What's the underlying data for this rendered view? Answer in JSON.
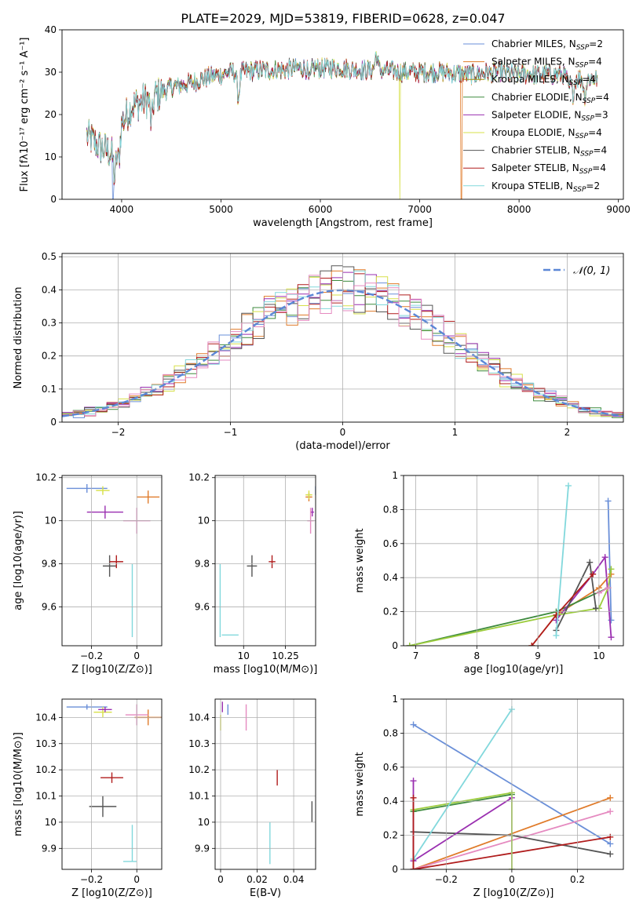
{
  "figure_title": "PLATE=2029, MJD=53819, FIBERID=0628, z=0.047",
  "colors": {
    "Chabrier MILES": "#6a8fd8",
    "Salpeter MILES": "#e07b2a",
    "Kroupa MILES": "#a28a10",
    "Chabrier ELODIE": "#3d8a3d",
    "Salpeter ELODIE": "#9a2fb0",
    "Kroupa ELODIE": "#d7e04a",
    "Chabrier STELIB": "#555555",
    "Salpeter STELIB": "#b01c1c",
    "Kroupa STELIB": "#82d8dc",
    "pink": "#e58ac0",
    "green_light": "#9ccc3c",
    "normal": "#5b87d6"
  },
  "chart_data": [
    {
      "id": "spectrum",
      "type": "line",
      "title": "PLATE=2029, MJD=53819, FIBERID=0628, z=0.047",
      "xlabel": "wavelength [Angstrom, rest frame]",
      "ylabel": "Flux [fλ10⁻¹⁷ erg cm⁻² s⁻¹ A⁻¹]",
      "xlim": [
        3400,
        9050
      ],
      "ylim": [
        0,
        40
      ],
      "xticks": [
        4000,
        5000,
        6000,
        7000,
        8000,
        9000
      ],
      "yticks": [
        0,
        10,
        20,
        30,
        40
      ],
      "legend_position": "top-right",
      "legend": [
        {
          "name": "Chabrier MILES",
          "sub": "N",
          "subscript": "SSP",
          "value": "=2"
        },
        {
          "name": "Salpeter MILES",
          "sub": "N",
          "subscript": "SSP",
          "value": "=4"
        },
        {
          "name": "Kroupa MILES",
          "sub": "N",
          "subscript": "SSP",
          "value": "=4"
        },
        {
          "name": "Chabrier ELODIE",
          "sub": "N",
          "subscript": "SSP",
          "value": "=4"
        },
        {
          "name": "Salpeter ELODIE",
          "sub": "N",
          "subscript": "SSP",
          "value": "=3"
        },
        {
          "name": "Kroupa ELODIE",
          "sub": "N",
          "subscript": "SSP",
          "value": "=4"
        },
        {
          "name": "Chabrier STELIB",
          "sub": "N",
          "subscript": "SSP",
          "value": "=4"
        },
        {
          "name": "Salpeter STELIB",
          "sub": "N",
          "subscript": "SSP",
          "value": "=4"
        },
        {
          "name": "Kroupa STELIB",
          "sub": "N",
          "subscript": "SSP",
          "value": "=2"
        }
      ],
      "continuum": [
        [
          3650,
          15
        ],
        [
          3800,
          12
        ],
        [
          3900,
          11
        ],
        [
          4000,
          18
        ],
        [
          4100,
          22
        ],
        [
          4300,
          24
        ],
        [
          4500,
          26.5
        ],
        [
          4700,
          27.5
        ],
        [
          4900,
          29
        ],
        [
          5100,
          30
        ],
        [
          5200,
          30
        ],
        [
          5400,
          30.5
        ],
        [
          5600,
          30.5
        ],
        [
          5800,
          31
        ],
        [
          6000,
          31
        ],
        [
          6200,
          31
        ],
        [
          6400,
          30.5
        ],
        [
          6600,
          30.5
        ],
        [
          6800,
          30
        ],
        [
          7000,
          30
        ],
        [
          7200,
          30
        ],
        [
          7500,
          29.5
        ],
        [
          7800,
          30
        ],
        [
          8000,
          29.5
        ],
        [
          8200,
          29.5
        ],
        [
          8400,
          29.5
        ],
        [
          8600,
          28.5
        ],
        [
          8800,
          28.5
        ]
      ],
      "features": [
        {
          "x": 3930,
          "depth": 8
        },
        {
          "x": 3970,
          "depth": 7
        },
        {
          "x": 4300,
          "depth": 6
        },
        {
          "x": 5175,
          "depth": 6
        },
        {
          "x": 5890,
          "depth": 3
        },
        {
          "x": 6563,
          "depth": -4
        },
        {
          "x": 8500,
          "depth": 3
        },
        {
          "x": 8542,
          "depth": 4
        },
        {
          "x": 8662,
          "depth": 4
        }
      ],
      "dropouts": [
        {
          "series": "Chabrier MILES",
          "x": 3910
        },
        {
          "series": "Kroupa ELODIE",
          "x": 6800
        },
        {
          "series": "Salpeter MILES",
          "x": 7420
        }
      ]
    },
    {
      "id": "residuals",
      "type": "histogram",
      "xlabel": "(data-model)/error",
      "ylabel": "Normed distribution",
      "xlim": [
        -2.5,
        2.5
      ],
      "ylim": [
        0,
        0.51
      ],
      "xticks": [
        -2,
        -1,
        0,
        1,
        2
      ],
      "yticks": [
        0.0,
        0.1,
        0.2,
        0.3,
        0.4,
        0.5
      ],
      "bin_width": 0.1,
      "reference_curve": {
        "name": "𝒩(0, 1)",
        "mean": 0,
        "sigma": 1
      },
      "legend_position": "top-right"
    },
    {
      "id": "age_vs_Z",
      "type": "errorbar",
      "xlabel": "Z [log10(Z/Z⊙)]",
      "ylabel": "age  [log10(age/yr)]",
      "xlim": [
        -0.33,
        0.11
      ],
      "ylim": [
        9.42,
        10.21
      ],
      "xticks": [
        -0.2,
        0.0
      ],
      "yticks": [
        9.6,
        9.8,
        10.0,
        10.2
      ],
      "points": [
        {
          "series": "Chabrier MILES",
          "x": -0.22,
          "xerr": 0.09,
          "y": 10.15,
          "yerr": 0.02
        },
        {
          "series": "Salpeter MILES",
          "x": 0.05,
          "xerr": 0.05,
          "y": 10.11,
          "yerr": 0.03
        },
        {
          "series": "Kroupa ELODIE",
          "x": -0.15,
          "xerr": 0.03,
          "y": 10.14,
          "yerr": 0.02
        },
        {
          "series": "Salpeter ELODIE",
          "x": -0.14,
          "xerr": 0.08,
          "y": 10.04,
          "yerr": 0.03
        },
        {
          "series": "pink",
          "x": 0.0,
          "xerr": 0.06,
          "y": 10.0,
          "yerr": 0.06
        },
        {
          "series": "Chabrier STELIB",
          "x": -0.12,
          "xerr": 0.03,
          "y": 9.79,
          "yerr": 0.05
        },
        {
          "series": "Salpeter STELIB",
          "x": -0.09,
          "xerr": 0.03,
          "y": 9.81,
          "yerr": 0.03
        },
        {
          "series": "Kroupa STELIB",
          "x": -0.02,
          "xerr": 0.0,
          "y": 9.63,
          "yerr": 0.17
        },
        {
          "series": "Kroupa STELIB",
          "x": -0.03,
          "xerr": 0.0,
          "y": 9.47,
          "yerr": 0.0
        }
      ]
    },
    {
      "id": "age_vs_mass",
      "type": "errorbar",
      "xlabel": "mass [log10(M/M⊙)]",
      "ylabel": "",
      "xlim": [
        9.83,
        10.43
      ],
      "ylim": [
        9.42,
        10.21
      ],
      "xticks": [
        10.0,
        10.25
      ],
      "yticks": [
        9.6,
        9.8,
        10.0,
        10.2
      ],
      "points": [
        {
          "series": "Chabrier MILES",
          "x": 10.43,
          "xerr": 0.0,
          "y": 10.14,
          "yerr": 0.02
        },
        {
          "series": "Salpeter MILES",
          "x": 10.39,
          "xerr": 0.02,
          "y": 10.11,
          "yerr": 0.02
        },
        {
          "series": "Kroupa ELODIE",
          "x": 10.39,
          "xerr": 0.02,
          "y": 10.12,
          "yerr": 0.02
        },
        {
          "series": "Salpeter ELODIE",
          "x": 10.41,
          "xerr": 0.01,
          "y": 10.04,
          "yerr": 0.02
        },
        {
          "series": "pink",
          "x": 10.4,
          "xerr": 0.02,
          "y": 10.0,
          "yerr": 0.06
        },
        {
          "series": "Chabrier STELIB",
          "x": 10.05,
          "xerr": 0.03,
          "y": 9.79,
          "yerr": 0.05
        },
        {
          "series": "Salpeter STELIB",
          "x": 10.17,
          "xerr": 0.02,
          "y": 9.81,
          "yerr": 0.03
        },
        {
          "series": "Kroupa STELIB",
          "x": 9.86,
          "xerr": 0.0,
          "y": 9.63,
          "yerr": 0.17
        },
        {
          "series": "Kroupa STELIB",
          "x": 9.92,
          "xerr": 0.05,
          "y": 9.47,
          "yerr": 0.0
        }
      ]
    },
    {
      "id": "weight_vs_age",
      "type": "line",
      "xlabel": "age  [log10(age/yr)]",
      "ylabel": "mass weight",
      "xlim": [
        6.8,
        10.4
      ],
      "ylim": [
        0.0,
        1.0
      ],
      "xticks": [
        7,
        8,
        9,
        10
      ],
      "yticks": [
        0.0,
        0.2,
        0.4,
        0.6,
        0.8,
        1.0
      ],
      "series": [
        {
          "name": "Chabrier MILES",
          "x": [
            10.15,
            10.2
          ],
          "y": [
            0.85,
            0.15
          ]
        },
        {
          "name": "Salpeter MILES",
          "x": [
            8.9,
            9.3,
            10.0,
            10.2
          ],
          "y": [
            0.0,
            0.18,
            0.34,
            0.42
          ]
        },
        {
          "name": "Chabrier ELODIE",
          "x": [
            6.9,
            9.3,
            10.15
          ],
          "y": [
            0.0,
            0.2,
            0.34
          ]
        },
        {
          "name": "Salpeter ELODIE",
          "x": [
            9.3,
            9.9,
            10.1,
            10.2
          ],
          "y": [
            0.15,
            0.42,
            0.52,
            0.05
          ]
        },
        {
          "name": "green_light",
          "x": [
            6.9,
            9.3,
            10.0,
            10.15,
            10.2
          ],
          "y": [
            0.0,
            0.18,
            0.22,
            0.34,
            0.45
          ]
        },
        {
          "name": "Chabrier STELIB",
          "x": [
            9.3,
            9.85,
            9.95
          ],
          "y": [
            0.09,
            0.49,
            0.22
          ]
        },
        {
          "name": "Salpeter STELIB",
          "x": [
            8.9,
            9.3,
            9.9
          ],
          "y": [
            0.0,
            0.18,
            0.42
          ]
        },
        {
          "name": "Kroupa STELIB",
          "x": [
            9.3,
            9.5
          ],
          "y": [
            0.06,
            0.94
          ]
        },
        {
          "name": "pink",
          "x": [
            10.0,
            10.15
          ],
          "y": [
            0.31,
            0.34
          ]
        }
      ]
    },
    {
      "id": "mass_vs_Z",
      "type": "errorbar",
      "xlabel": "Z [log10(Z/Z⊙)]",
      "ylabel": "mass [log10(M/M⊙)]",
      "xlim": [
        -0.33,
        0.11
      ],
      "ylim": [
        9.82,
        10.47
      ],
      "xticks": [
        -0.2,
        0.0
      ],
      "yticks": [
        9.9,
        10.0,
        10.1,
        10.2,
        10.3,
        10.4
      ],
      "points": [
        {
          "series": "Chabrier MILES",
          "x": -0.22,
          "xerr": 0.09,
          "y": 10.44,
          "yerr": 0.01
        },
        {
          "series": "Kroupa ELODIE",
          "x": -0.15,
          "xerr": 0.04,
          "y": 10.42,
          "yerr": 0.02
        },
        {
          "series": "Salpeter ELODIE",
          "x": -0.14,
          "xerr": 0.03,
          "y": 10.43,
          "yerr": 0.01
        },
        {
          "series": "Salpeter MILES",
          "x": 0.05,
          "xerr": 0.06,
          "y": 10.4,
          "yerr": 0.03
        },
        {
          "series": "pink",
          "x": 0.0,
          "xerr": 0.05,
          "y": 10.41,
          "yerr": 0.04
        },
        {
          "series": "Salpeter STELIB",
          "x": -0.11,
          "xerr": 0.05,
          "y": 10.17,
          "yerr": 0.02
        },
        {
          "series": "Chabrier STELIB",
          "x": -0.15,
          "xerr": 0.06,
          "y": 10.06,
          "yerr": 0.04
        },
        {
          "series": "Kroupa STELIB",
          "x": -0.02,
          "xerr": 0.0,
          "y": 9.92,
          "yerr": 0.07
        },
        {
          "series": "Kroupa STELIB",
          "x": -0.03,
          "xerr": 0.03,
          "y": 9.85,
          "yerr": 0.0
        }
      ]
    },
    {
      "id": "mass_vs_EBV",
      "type": "errorbar",
      "xlabel": "E(B-V)",
      "ylabel": "",
      "xlim": [
        -0.003,
        0.052
      ],
      "ylim": [
        9.82,
        10.47
      ],
      "xticks": [
        0.0,
        0.02,
        0.04
      ],
      "yticks": [
        9.9,
        10.0,
        10.1,
        10.2,
        10.3,
        10.4
      ],
      "points": [
        {
          "series": "Chabrier MILES",
          "x": 0.004,
          "xerr": 0.0,
          "y": 10.43,
          "yerr": 0.02
        },
        {
          "series": "Salpeter ELODIE",
          "x": 0.001,
          "xerr": 0.0,
          "y": 10.44,
          "yerr": 0.02
        },
        {
          "series": "Kroupa ELODIE",
          "x": 0.0,
          "xerr": 0.0,
          "y": 10.38,
          "yerr": 0.03
        },
        {
          "series": "pink",
          "x": 0.014,
          "xerr": 0.0,
          "y": 10.4,
          "yerr": 0.05
        },
        {
          "series": "Salpeter STELIB",
          "x": 0.031,
          "xerr": 0.0,
          "y": 10.17,
          "yerr": 0.03
        },
        {
          "series": "Kroupa STELIB",
          "x": 0.027,
          "xerr": 0.0,
          "y": 9.92,
          "yerr": 0.08
        },
        {
          "series": "Chabrier STELIB",
          "x": 0.05,
          "xerr": 0.0,
          "y": 10.04,
          "yerr": 0.04
        }
      ]
    },
    {
      "id": "weight_vs_Z",
      "type": "line",
      "xlabel": "Z [log10(Z/Z⊙)]",
      "ylabel": "mass weight",
      "xlim": [
        -0.33,
        0.34
      ],
      "ylim": [
        0.0,
        1.0
      ],
      "xticks": [
        -0.2,
        0.0,
        0.2
      ],
      "yticks": [
        0.0,
        0.2,
        0.4,
        0.6,
        0.8,
        1.0
      ],
      "series": [
        {
          "name": "Chabrier MILES",
          "x": [
            -0.3,
            0.3
          ],
          "y": [
            0.85,
            0.15
          ]
        },
        {
          "name": "Salpeter MILES",
          "x": [
            -0.3,
            -0.3,
            0.3
          ],
          "y": [
            0.22,
            0.0,
            0.42
          ]
        },
        {
          "name": "pink",
          "x": [
            -0.3,
            0.3
          ],
          "y": [
            0.0,
            0.34
          ]
        },
        {
          "name": "Chabrier STELIB",
          "x": [
            -0.3,
            0.0,
            0.3
          ],
          "y": [
            0.22,
            0.2,
            0.09
          ]
        },
        {
          "name": "Salpeter STELIB",
          "x": [
            -0.3,
            0.3
          ],
          "y": [
            0.0,
            0.19
          ]
        },
        {
          "name": "Salpeter ELODIE",
          "x": [
            -0.3,
            -0.3,
            0.0
          ],
          "y": [
            0.52,
            0.05,
            0.42
          ]
        },
        {
          "name": "Chabrier ELODIE",
          "x": [
            -0.3,
            0.0
          ],
          "y": [
            0.34,
            0.44
          ]
        },
        {
          "name": "green_light",
          "x": [
            -0.3,
            0.0,
            0.0
          ],
          "y": [
            0.35,
            0.45,
            0.0
          ]
        },
        {
          "name": "Kroupa STELIB",
          "x": [
            -0.3,
            0.0
          ],
          "y": [
            0.06,
            0.94
          ]
        },
        {
          "name": "Salpeter STELIB",
          "x": [
            -0.3,
            -0.3
          ],
          "y": [
            0.42,
            0.0
          ]
        }
      ]
    }
  ]
}
